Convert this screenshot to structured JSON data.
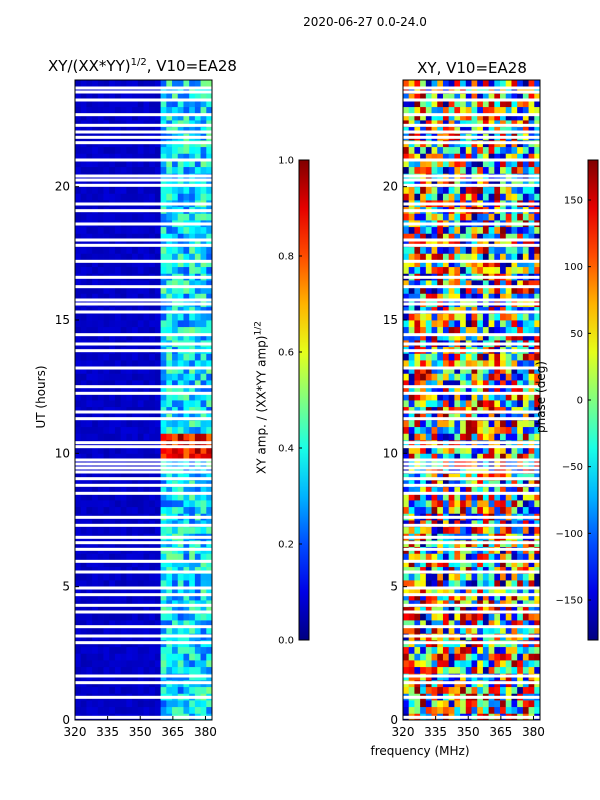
{
  "figure": {
    "suptitle": "2020-06-27 0.0-24.0",
    "shared_xlabel": "frequency (MHz)"
  },
  "chart_data": [
    {
      "type": "heatmap",
      "title": "XY/(XX*YY)",
      "title_exponent": "1/2",
      "title_suffix": ", V10=EA28",
      "xlabel": "frequency (MHz)",
      "ylabel": "UT (hours)",
      "xlim": [
        320,
        383
      ],
      "ylim": [
        0,
        24
      ],
      "xticks": [
        320,
        335,
        350,
        365,
        380
      ],
      "yticks": [
        0,
        5,
        10,
        15,
        20
      ],
      "colorbar": {
        "label": "XY amp. / (XX*YY amp)",
        "label_exponent": "1/2",
        "min": 0.0,
        "max": 1.0,
        "ticks": [
          "0.0",
          "0.2",
          "0.4",
          "0.6",
          "0.8",
          "1.0"
        ]
      },
      "colormap": "jet",
      "description_values": {
        "background_level": 0.05,
        "band_start_mhz": 360,
        "high_amplitude_hours": [
          9.8,
          10.8
        ]
      }
    },
    {
      "type": "heatmap",
      "title": "XY, V10=EA28",
      "xlabel": "frequency (MHz)",
      "xlim": [
        320,
        383
      ],
      "ylim": [
        0,
        24
      ],
      "xticks": [
        320,
        335,
        350,
        365,
        380
      ],
      "yticks": [
        0,
        5,
        10,
        15,
        20
      ],
      "colorbar": {
        "label": "phase (deg)",
        "min": -180,
        "max": 180,
        "ticks": [
          "−150",
          "−100",
          "−50",
          "0",
          "50",
          "100",
          "150"
        ]
      },
      "colormap": "jet"
    }
  ],
  "flagged_hours": [
    0.1,
    0.85,
    1.4,
    1.65,
    2.9,
    3.15,
    3.5,
    4.05,
    4.3,
    4.7,
    4.95,
    5.55,
    5.95,
    6.4,
    6.65,
    6.85,
    7.3,
    7.6,
    8.5,
    8.8,
    9.05,
    9.3,
    9.45,
    9.6,
    9.75,
    10.25,
    10.4,
    11.3,
    11.55,
    12.25,
    12.5,
    13.2,
    13.85,
    14.1,
    14.45,
    15.3,
    15.6,
    15.75,
    16.25,
    16.6,
    17.2,
    17.8,
    18.0,
    18.6,
    19.1,
    19.35,
    20.05,
    20.25,
    20.4,
    21.0,
    21.65,
    21.85,
    22.05,
    22.3,
    22.7,
    23.25,
    23.55,
    23.7
  ]
}
